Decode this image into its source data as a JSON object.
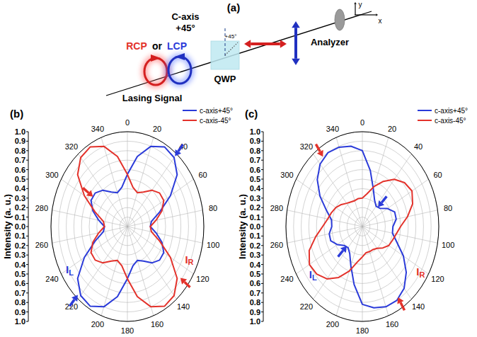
{
  "panel_a": {
    "panel_label": "(a)",
    "c_axis": "C-axis",
    "c_axis_angle": "+45°",
    "qwp_angle": "+45°",
    "qwp": "QWP",
    "analyzer": "Analyzer",
    "rcp": "RCP",
    "or": "or",
    "lcp": "LCP",
    "beam": "Lasing Signal",
    "x_axis": "x",
    "y_axis": "y"
  },
  "chart_data": [
    {
      "type": "polar",
      "title": "(b)",
      "ylabel": "Intensity (a. u.)",
      "x": [
        0,
        10,
        20,
        30,
        40,
        50,
        60,
        70,
        80,
        90,
        100,
        110,
        120,
        130,
        140,
        150,
        160,
        170,
        180,
        190,
        200,
        210,
        220,
        230,
        240,
        250,
        260,
        270,
        280,
        290,
        300,
        310,
        320,
        330,
        340,
        350
      ],
      "xlim": [
        0,
        360
      ],
      "xticks": [
        0,
        20,
        40,
        60,
        80,
        100,
        120,
        140,
        160,
        180,
        200,
        220,
        240,
        260,
        280,
        300,
        320,
        340
      ],
      "ylim": [
        0,
        1
      ],
      "yticks": [
        {
          "value": 0,
          "label": "0.0"
        },
        {
          "value": 0.1,
          "label": "0.1"
        },
        {
          "value": 0.2,
          "label": "0.2"
        },
        {
          "value": 0.3,
          "label": "0.3"
        },
        {
          "value": 0.4,
          "label": "0.4"
        },
        {
          "value": 0.5,
          "label": "0.5"
        },
        {
          "value": 0.6,
          "label": "0.6"
        },
        {
          "value": 0.7,
          "label": "0.7"
        },
        {
          "value": 0.8,
          "label": "0.8"
        },
        {
          "value": 0.9,
          "label": "0.9"
        },
        {
          "value": 1,
          "label": "1.0"
        }
      ],
      "grid": true,
      "legend": "upper right",
      "series": [
        {
          "name": "c-axis+45°",
          "color": "#2b3bd9",
          "values": [
            0.55,
            0.75,
            0.9,
            0.97,
            0.95,
            0.85,
            0.65,
            0.45,
            0.32,
            0.3,
            0.38,
            0.48,
            0.55,
            0.55,
            0.5,
            0.42,
            0.38,
            0.42,
            0.55,
            0.75,
            0.9,
            0.97,
            0.95,
            0.85,
            0.65,
            0.45,
            0.32,
            0.3,
            0.38,
            0.48,
            0.55,
            0.55,
            0.5,
            0.42,
            0.38,
            0.42
          ]
        },
        {
          "name": "c-axis-45°",
          "color": "#e3322b",
          "values": [
            0.55,
            0.42,
            0.38,
            0.42,
            0.5,
            0.55,
            0.55,
            0.48,
            0.38,
            0.3,
            0.32,
            0.45,
            0.65,
            0.85,
            0.95,
            0.97,
            0.9,
            0.75,
            0.55,
            0.42,
            0.38,
            0.42,
            0.5,
            0.55,
            0.55,
            0.48,
            0.38,
            0.3,
            0.32,
            0.45,
            0.65,
            0.85,
            0.95,
            0.97,
            0.9,
            0.75
          ]
        }
      ],
      "annotations": [
        {
          "text": "I",
          "subscript": "L",
          "color": "#2b3bd9"
        },
        {
          "text": "I",
          "subscript": "R",
          "color": "#e3322b"
        }
      ]
    },
    {
      "type": "polar",
      "title": "(c)",
      "ylabel": "Intensity (a. u.)",
      "x": [
        0,
        10,
        20,
        30,
        40,
        50,
        60,
        70,
        80,
        90,
        100,
        110,
        120,
        130,
        140,
        150,
        160,
        170,
        180,
        190,
        200,
        210,
        220,
        230,
        240,
        250,
        260,
        270,
        280,
        290,
        300,
        310,
        320,
        330,
        340,
        350
      ],
      "xlim": [
        0,
        360
      ],
      "xticks": [
        0,
        20,
        40,
        60,
        80,
        100,
        120,
        140,
        160,
        180,
        200,
        220,
        240,
        260,
        280,
        300,
        320,
        340
      ],
      "ylim": [
        0,
        1
      ],
      "yticks": [
        {
          "value": 0,
          "label": "0.0"
        },
        {
          "value": 0.1,
          "label": "0.1"
        },
        {
          "value": 0.2,
          "label": "0.2"
        },
        {
          "value": 0.3,
          "label": "0.3"
        },
        {
          "value": 0.4,
          "label": "0.4"
        },
        {
          "value": 0.5,
          "label": "0.5"
        },
        {
          "value": 0.6,
          "label": "0.6"
        },
        {
          "value": 0.7,
          "label": "0.7"
        },
        {
          "value": 0.8,
          "label": "0.8"
        },
        {
          "value": 0.9,
          "label": "0.9"
        },
        {
          "value": 1,
          "label": "1.0"
        }
      ],
      "grid": true,
      "legend": "upper right",
      "series": [
        {
          "name": "c-axis+45°",
          "color": "#2b3bd9",
          "values": [
            0.8,
            0.6,
            0.42,
            0.32,
            0.28,
            0.3,
            0.38,
            0.45,
            0.45,
            0.4,
            0.4,
            0.48,
            0.62,
            0.75,
            0.85,
            0.9,
            0.9,
            0.87,
            0.82,
            0.62,
            0.44,
            0.33,
            0.29,
            0.31,
            0.38,
            0.44,
            0.44,
            0.4,
            0.41,
            0.5,
            0.64,
            0.77,
            0.86,
            0.9,
            0.89,
            0.86
          ]
        },
        {
          "name": "c-axis-45°",
          "color": "#e3322b",
          "values": [
            0.3,
            0.35,
            0.45,
            0.55,
            0.65,
            0.72,
            0.75,
            0.7,
            0.6,
            0.5,
            0.45,
            0.42,
            0.4,
            0.35,
            0.3,
            0.28,
            0.28,
            0.28,
            0.32,
            0.38,
            0.5,
            0.62,
            0.72,
            0.78,
            0.8,
            0.74,
            0.62,
            0.52,
            0.46,
            0.43,
            0.4,
            0.36,
            0.32,
            0.3,
            0.29,
            0.3
          ]
        }
      ],
      "annotations": [
        {
          "text": "I",
          "subscript": "L",
          "color": "#2b3bd9"
        },
        {
          "text": "I",
          "subscript": "R",
          "color": "#e3322b"
        }
      ]
    }
  ]
}
